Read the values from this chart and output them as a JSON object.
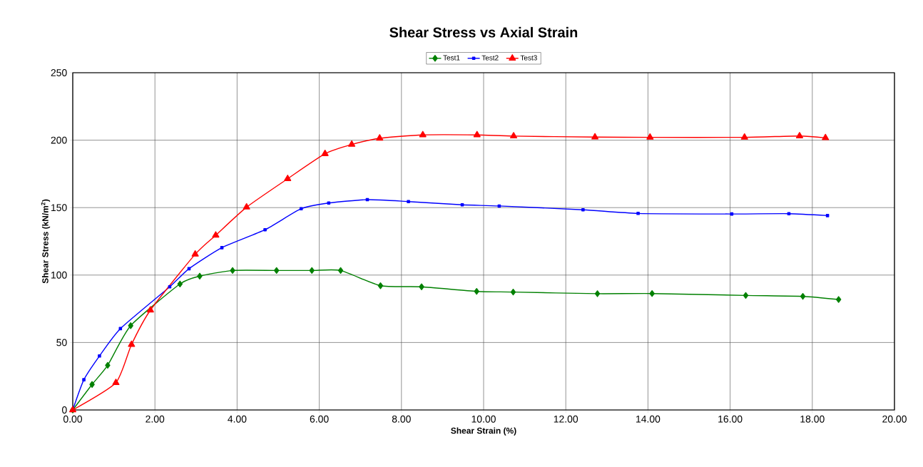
{
  "chart_data": {
    "type": "line",
    "title": "Shear Stress vs Axial Strain",
    "xlabel": "Shear Strain (%)",
    "ylabel": "Shear Stress (kN/m$^{2}$)",
    "xlim": [
      0,
      20
    ],
    "ylim": [
      0,
      250
    ],
    "xticks": [
      {
        "value": 0,
        "label": "0.00"
      },
      {
        "value": 2,
        "label": "2.00"
      },
      {
        "value": 4,
        "label": "4.00"
      },
      {
        "value": 6,
        "label": "6.00"
      },
      {
        "value": 8,
        "label": "8.00"
      },
      {
        "value": 10,
        "label": "10.00"
      },
      {
        "value": 12,
        "label": "12.00"
      },
      {
        "value": 14,
        "label": "14.00"
      },
      {
        "value": 16,
        "label": "16.00"
      },
      {
        "value": 18,
        "label": "18.00"
      },
      {
        "value": 20,
        "label": "20.00"
      }
    ],
    "yticks": [
      0,
      50,
      100,
      150,
      200,
      250
    ],
    "grid": true,
    "legend": "top",
    "series": [
      {
        "name": "Test1",
        "color": "#008000",
        "marker": "diamond",
        "x": [
          0,
          0.47,
          0.85,
          1.41,
          2.61,
          3.09,
          3.89,
          4.96,
          5.82,
          6.52,
          7.49,
          8.49,
          9.83,
          10.72,
          12.77,
          14.1,
          16.38,
          17.77,
          18.64
        ],
        "values": [
          0,
          18.9,
          33.1,
          62.5,
          93.4,
          99.2,
          103.4,
          103.4,
          103.4,
          103.4,
          92.1,
          91.3,
          87.9,
          87.4,
          86.2,
          86.3,
          84.9,
          84.2,
          81.9
        ]
      },
      {
        "name": "Test2",
        "color": "#0000ff",
        "marker": "square",
        "x": [
          0,
          0.27,
          0.65,
          1.16,
          2.36,
          2.83,
          3.63,
          4.68,
          5.56,
          6.23,
          7.17,
          8.17,
          9.48,
          10.38,
          12.42,
          13.76,
          16.04,
          17.43,
          18.37
        ],
        "values": [
          0,
          22.4,
          40.0,
          60.3,
          91.3,
          104.7,
          120.3,
          133.6,
          149.2,
          153.4,
          155.9,
          154.5,
          152.1,
          151.2,
          148.4,
          145.7,
          145.3,
          145.5,
          144.1
        ]
      },
      {
        "name": "Test3",
        "color": "#ff0000",
        "marker": "triangle",
        "x": [
          0,
          1.05,
          1.43,
          1.89,
          2.98,
          3.48,
          4.23,
          5.23,
          6.14,
          6.79,
          7.47,
          8.52,
          9.84,
          10.73,
          12.71,
          14.05,
          16.35,
          17.69,
          18.32
        ],
        "values": [
          0,
          20.2,
          48.5,
          74.0,
          115.4,
          129.5,
          150.3,
          171.4,
          189.9,
          196.8,
          201.4,
          203.9,
          203.9,
          203.0,
          202.3,
          202.1,
          202.1,
          203.1,
          201.7
        ]
      }
    ]
  }
}
